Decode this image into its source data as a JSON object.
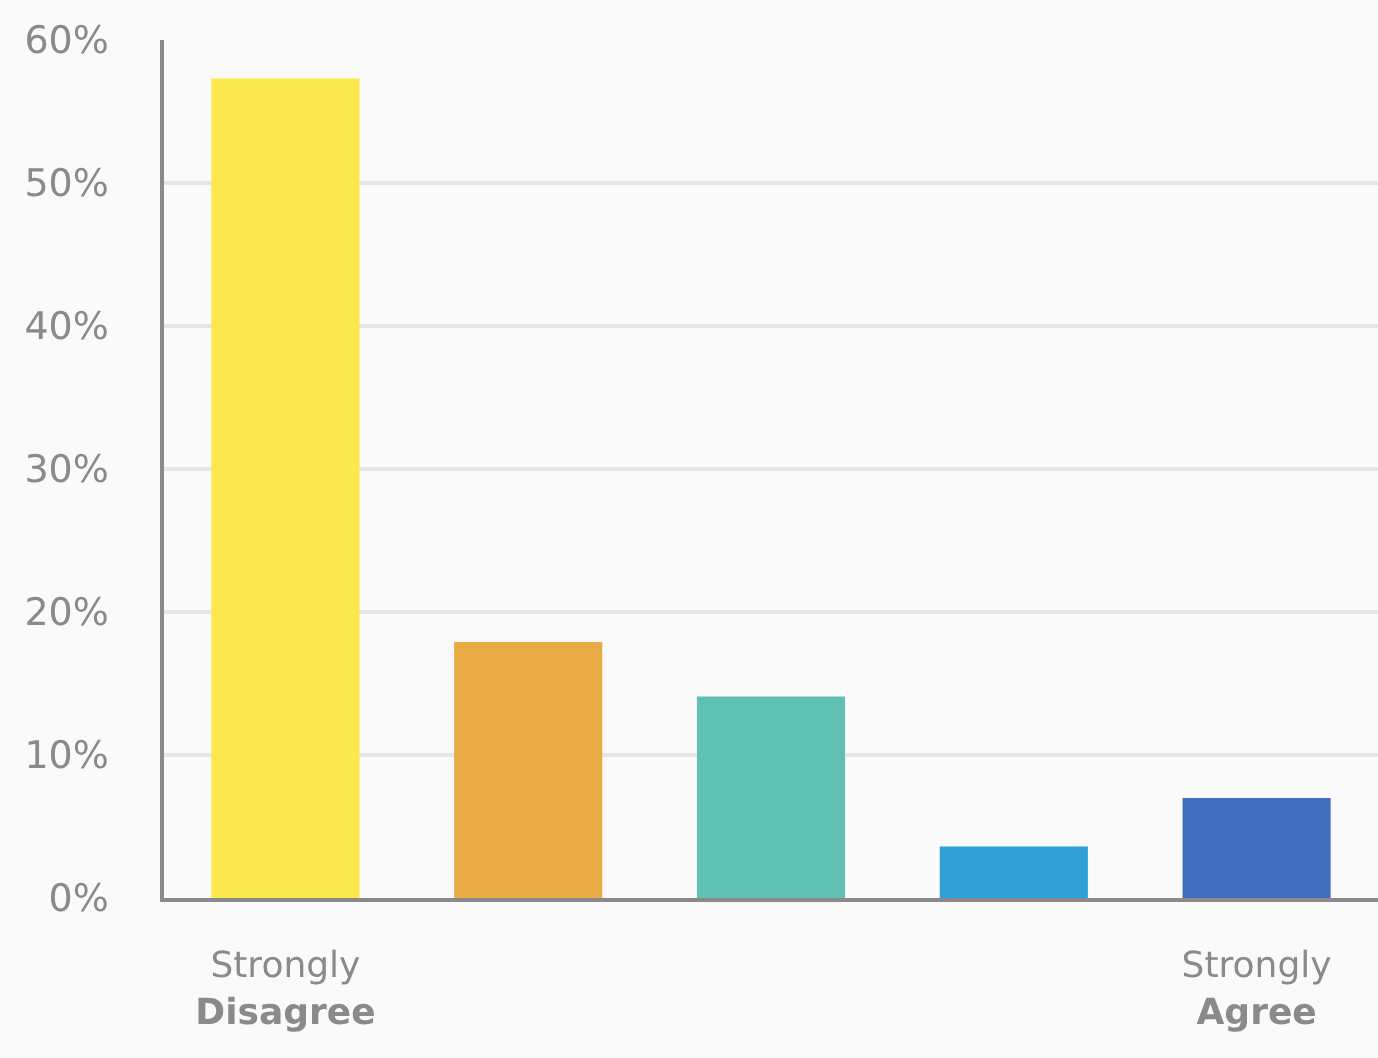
{
  "chart_data": {
    "type": "bar",
    "categories": [
      "Strongly\nDisagree",
      null,
      null,
      null,
      "Strongly\nAgree"
    ],
    "values": [
      57.3,
      17.9,
      14.1,
      3.6,
      7.0
    ],
    "colors": [
      "#fbe74e",
      "#e9ac44",
      "#60c0b2",
      "#2f9fd6",
      "#416fbf"
    ],
    "ylim": [
      0,
      60
    ],
    "yticks": [
      {
        "value": 0,
        "label": "0%"
      },
      {
        "value": 10,
        "label": "10%"
      },
      {
        "value": 20,
        "label": "20%"
      },
      {
        "value": 30,
        "label": "30%"
      },
      {
        "value": 40,
        "label": "40%"
      },
      {
        "value": 50,
        "label": "50%"
      },
      {
        "value": 60,
        "label": "60%"
      }
    ],
    "grid": "y"
  }
}
